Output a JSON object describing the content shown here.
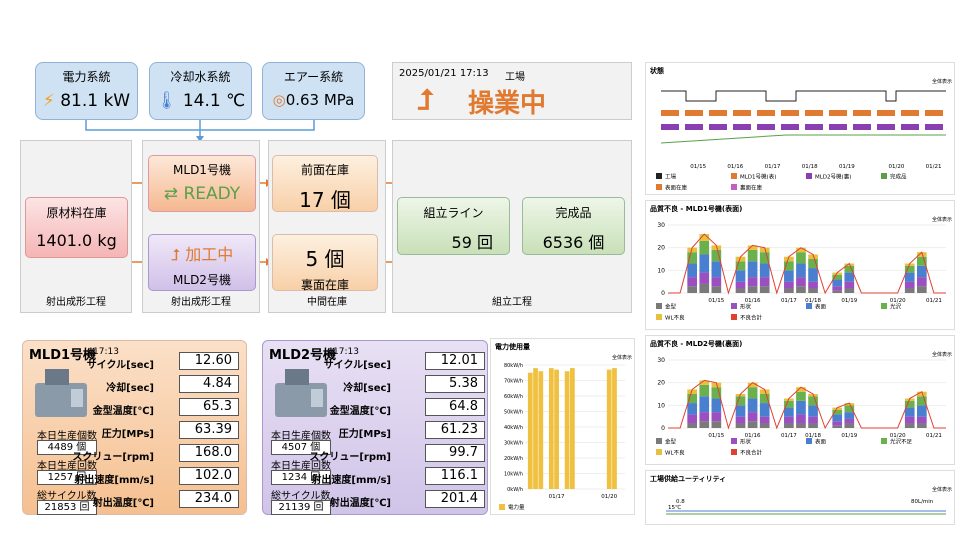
{
  "utilities": [
    {
      "label": "電力系統",
      "value": "81.1 kW"
    },
    {
      "label": "冷却水系統",
      "value": "14.1 ℃"
    },
    {
      "label": "エアー系統",
      "value": "0.63 MPa"
    }
  ],
  "status": {
    "datetime": "2025/01/21 17:13",
    "location": "工場",
    "state": "操業中"
  },
  "process": {
    "stages": [
      "射出成形工程",
      "射出成形工程",
      "中間在庫",
      "組立工程"
    ],
    "material": {
      "label": "原材料在庫",
      "value": "1401.0 kg"
    },
    "mld1": {
      "label": "MLD1号機",
      "state": "READY"
    },
    "mld2": {
      "label": "MLD2号機",
      "state": "加工中"
    },
    "front": {
      "label": "前面在庫",
      "value": "17 個"
    },
    "back": {
      "label": "裏面在庫",
      "value": "5 個"
    },
    "assembly": {
      "label": "組立ライン",
      "value": "59 回"
    },
    "finished": {
      "label": "完成品",
      "value": "6536 個"
    }
  },
  "machines": [
    {
      "name": "MLD1号機",
      "time": "17:13",
      "params": [
        [
          "サイクル[sec]",
          "12.60"
        ],
        [
          "冷却[sec]",
          "4.84"
        ],
        [
          "金型温度[℃]",
          "65.3"
        ],
        [
          "圧力[MPs]",
          "63.39"
        ],
        [
          "スクリュー[rpm]",
          "168.0"
        ],
        [
          "射出速度[mm/s]",
          "102.0"
        ],
        [
          "射出温度[℃]",
          "234.0"
        ]
      ],
      "counters": [
        [
          "本日生産個数",
          "4489 個"
        ],
        [
          "本日生産回数",
          "1257 回"
        ],
        [
          "総サイクル数",
          "21853 回"
        ]
      ]
    },
    {
      "name": "MLD2号機",
      "time": "17:13",
      "params": [
        [
          "サイクル[sec]",
          "12.01"
        ],
        [
          "冷却[sec]",
          "5.38"
        ],
        [
          "金型温度[℃]",
          "64.8"
        ],
        [
          "圧力[MPs]",
          "61.23"
        ],
        [
          "スクリュー[rpm]",
          "99.7"
        ],
        [
          "射出速度[mm/s]",
          "116.1"
        ],
        [
          "射出温度[℃]",
          "201.4"
        ]
      ],
      "counters": [
        [
          "本日生産個数",
          "4507 個"
        ],
        [
          "本日生産回数",
          "1234 回"
        ],
        [
          "総サイクル数",
          "21139 回"
        ]
      ]
    }
  ],
  "charts": {
    "state": {
      "type": "timeline",
      "title": "状態",
      "button": "全体表示",
      "xlim": [
        0,
        23
      ],
      "xticks": [
        {
          "value": 3,
          "label": "01/15"
        },
        {
          "value": 6,
          "label": "01/16"
        },
        {
          "value": 9,
          "label": "01/17"
        },
        {
          "value": 12,
          "label": "01/18"
        },
        {
          "value": 15,
          "label": "01/19"
        },
        {
          "value": 19,
          "label": "01/20"
        },
        {
          "value": 22,
          "label": "01/21"
        }
      ],
      "legend": [
        {
          "name": "工場",
          "color": "#222222"
        },
        {
          "name": "MLD1号機(表)",
          "color": "#e07a30"
        },
        {
          "name": "MLD2号機(裏)",
          "color": "#8a3fb0"
        },
        {
          "name": "完成品",
          "color": "#5aa04a"
        },
        {
          "name": "表面在庫",
          "color": "#e07a30"
        },
        {
          "name": "裏面在庫",
          "color": "#c060c0"
        }
      ]
    },
    "q1": {
      "type": "stacked-bar",
      "title": "品質不良 - MLD1号機(表面)",
      "button": "全体表示",
      "xlim": [
        0,
        23
      ],
      "ylim": [
        0,
        30
      ],
      "yticks": [
        0,
        10,
        20,
        30
      ],
      "xticks": [
        {
          "value": 4,
          "label": "01/15"
        },
        {
          "value": 7,
          "label": "01/16"
        },
        {
          "value": 10,
          "label": "01/17"
        },
        {
          "value": 12,
          "label": "01/18"
        },
        {
          "value": 15,
          "label": "01/19"
        },
        {
          "value": 19,
          "label": "01/20"
        },
        {
          "value": 22,
          "label": "01/21"
        }
      ],
      "series": [
        {
          "name": "金型",
          "color": "#7a7a7a",
          "values": [
            0,
            0,
            3,
            4,
            3,
            0,
            2,
            3,
            3,
            0,
            2,
            3,
            2,
            0,
            1,
            2,
            0,
            0,
            0,
            0,
            2,
            3,
            0,
            0
          ]
        },
        {
          "name": "形状",
          "color": "#9b4fc0",
          "values": [
            0,
            0,
            4,
            5,
            4,
            0,
            3,
            4,
            4,
            0,
            3,
            4,
            3,
            0,
            2,
            3,
            0,
            0,
            0,
            0,
            3,
            4,
            0,
            0
          ]
        },
        {
          "name": "表面",
          "color": "#4a7fd0",
          "values": [
            0,
            0,
            6,
            8,
            7,
            0,
            5,
            7,
            6,
            0,
            5,
            6,
            6,
            0,
            3,
            4,
            0,
            0,
            0,
            0,
            4,
            5,
            0,
            0
          ]
        },
        {
          "name": "光沢",
          "color": "#6ab04c",
          "values": [
            0,
            0,
            5,
            6,
            5,
            0,
            4,
            5,
            5,
            0,
            4,
            5,
            4,
            0,
            2,
            3,
            0,
            0,
            0,
            0,
            3,
            4,
            0,
            0
          ]
        },
        {
          "name": "WL不良",
          "color": "#e8c040",
          "values": [
            0,
            0,
            2,
            3,
            2,
            0,
            2,
            2,
            2,
            0,
            2,
            2,
            2,
            0,
            1,
            1,
            0,
            0,
            0,
            0,
            1,
            2,
            0,
            0
          ]
        }
      ],
      "total": {
        "name": "不良合計",
        "color": "#e04030",
        "values": [
          0,
          0,
          20,
          26,
          21,
          0,
          16,
          21,
          20,
          0,
          16,
          20,
          17,
          0,
          9,
          13,
          0,
          0,
          0,
          0,
          13,
          18,
          0,
          0
        ]
      }
    },
    "q2": {
      "type": "stacked-bar",
      "title": "品質不良 - MLD2号機(裏面)",
      "button": "全体表示",
      "xlim": [
        0,
        23
      ],
      "ylim": [
        0,
        30
      ],
      "yticks": [
        0,
        10,
        20,
        30
      ],
      "xticks": [
        {
          "value": 4,
          "label": "01/15"
        },
        {
          "value": 7,
          "label": "01/16"
        },
        {
          "value": 10,
          "label": "01/17"
        },
        {
          "value": 12,
          "label": "01/18"
        },
        {
          "value": 15,
          "label": "01/19"
        },
        {
          "value": 19,
          "label": "01/20"
        },
        {
          "value": 22,
          "label": "01/21"
        }
      ],
      "series": [
        {
          "name": "金型",
          "color": "#7a7a7a",
          "values": [
            0,
            0,
            2,
            3,
            3,
            0,
            2,
            3,
            2,
            0,
            2,
            2,
            2,
            0,
            1,
            2,
            0,
            0,
            0,
            0,
            2,
            2,
            0,
            0
          ]
        },
        {
          "name": "形状",
          "color": "#9b4fc0",
          "values": [
            0,
            0,
            4,
            4,
            4,
            0,
            3,
            4,
            3,
            0,
            3,
            4,
            3,
            0,
            2,
            2,
            0,
            0,
            0,
            0,
            3,
            3,
            0,
            0
          ]
        },
        {
          "name": "表面",
          "color": "#4a7fd0",
          "values": [
            0,
            0,
            5,
            7,
            6,
            0,
            5,
            6,
            6,
            0,
            4,
            6,
            5,
            0,
            3,
            3,
            0,
            0,
            0,
            0,
            4,
            5,
            0,
            0
          ]
        },
        {
          "name": "光沢不足",
          "color": "#6ab04c",
          "values": [
            0,
            0,
            4,
            5,
            5,
            0,
            4,
            5,
            4,
            0,
            3,
            4,
            4,
            0,
            2,
            3,
            0,
            0,
            0,
            0,
            3,
            4,
            0,
            0
          ]
        },
        {
          "name": "WL不良",
          "color": "#e8c040",
          "values": [
            0,
            0,
            2,
            2,
            2,
            0,
            1,
            2,
            2,
            0,
            1,
            2,
            1,
            0,
            1,
            1,
            0,
            0,
            0,
            0,
            1,
            2,
            0,
            0
          ]
        }
      ],
      "total": {
        "name": "不良合計",
        "color": "#e04030",
        "values": [
          0,
          0,
          17,
          21,
          20,
          0,
          15,
          20,
          17,
          0,
          13,
          18,
          15,
          0,
          9,
          11,
          0,
          0,
          0,
          0,
          13,
          16,
          0,
          0
        ]
      }
    },
    "power": {
      "type": "bar",
      "title": "電力使用量",
      "button": "全体表示",
      "xlim": [
        0,
        19
      ],
      "ylim": [
        0,
        80
      ],
      "yticks": [
        {
          "value": 0,
          "label": "0kW/h"
        },
        {
          "value": 10,
          "label": "10kW/h"
        },
        {
          "value": 20,
          "label": "20kW/h"
        },
        {
          "value": 30,
          "label": "30kW/h"
        },
        {
          "value": 40,
          "label": "40kW/h"
        },
        {
          "value": 50,
          "label": "50kW/h"
        },
        {
          "value": 60,
          "label": "60kW/h"
        },
        {
          "value": 70,
          "label": "70kW/h"
        },
        {
          "value": 80,
          "label": "80kW/h"
        }
      ],
      "xticks": [
        {
          "value": 6,
          "label": "01/17"
        },
        {
          "value": 16,
          "label": "01/20"
        }
      ],
      "series": [
        {
          "name": "電力量",
          "color": "#f0c040",
          "values": [
            0,
            75,
            78,
            76,
            0,
            78,
            77,
            0,
            76,
            78,
            0,
            0,
            0,
            0,
            0,
            0,
            77,
            78,
            0,
            0
          ]
        }
      ]
    },
    "utility": {
      "type": "line",
      "title": "工場供給ユーティリティ",
      "button": "全体表示",
      "labels": [
        "0.8",
        "80L/min",
        "15℃"
      ]
    }
  }
}
